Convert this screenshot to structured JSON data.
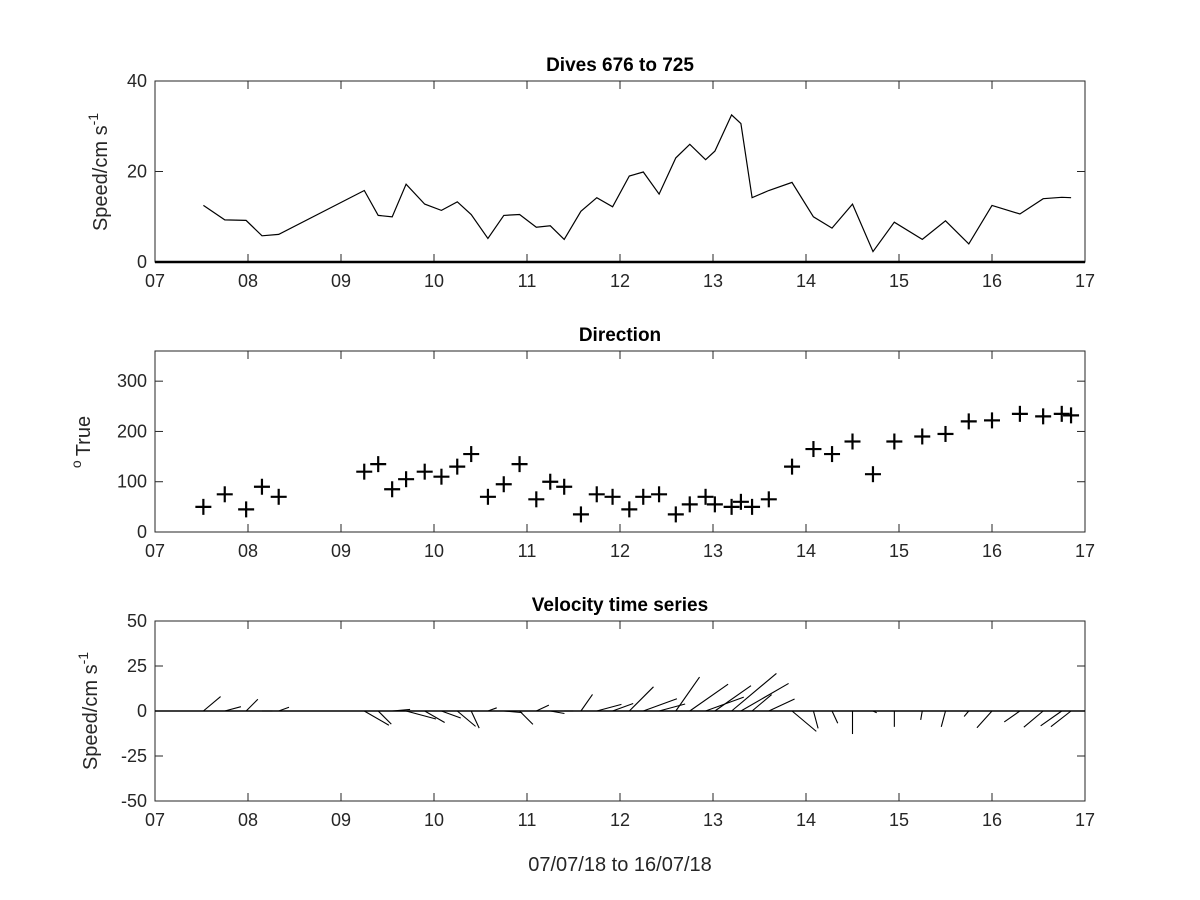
{
  "chart_data": [
    {
      "type": "line",
      "title": "Dives 676 to 725",
      "ylabel": "Speed/cm s",
      "ylabel_sup": "-1",
      "xlabel": "",
      "xlim": [
        7,
        17
      ],
      "ylim": [
        0,
        40
      ],
      "xticks": [
        7,
        8,
        9,
        10,
        11,
        12,
        13,
        14,
        15,
        16,
        17
      ],
      "xticklabels": [
        "07",
        "08",
        "09",
        "10",
        "11",
        "12",
        "13",
        "14",
        "15",
        "16",
        "17"
      ],
      "yticks": [
        0,
        20,
        40
      ],
      "yticklabels": [
        "0",
        "20",
        "40"
      ],
      "grid": false,
      "series": [
        {
          "x": [
            7.52,
            7.75,
            7.98,
            8.15,
            8.33,
            9.25,
            9.4,
            9.55,
            9.7,
            9.9,
            10.08,
            10.25,
            10.4,
            10.58,
            10.75,
            10.92,
            11.1,
            11.25,
            11.4,
            11.58,
            11.75,
            11.92,
            12.1,
            12.25,
            12.42,
            12.6,
            12.75,
            12.92,
            13.02,
            13.2,
            13.3,
            13.42,
            13.6,
            13.85,
            14.08,
            14.28,
            14.5,
            14.72,
            14.95,
            15.25,
            15.5,
            15.75,
            16.0,
            16.3,
            16.55,
            16.75,
            16.85
          ],
          "values": [
            12.5,
            9.3,
            9.2,
            5.8,
            6.1,
            15.8,
            10.3,
            10.0,
            17.2,
            12.8,
            11.4,
            13.3,
            10.5,
            5.2,
            10.3,
            10.5,
            7.7,
            8.0,
            5.0,
            11.2,
            14.2,
            12.2,
            19.0,
            19.9,
            15.0,
            23.0,
            26.0,
            22.6,
            24.5,
            32.5,
            30.6,
            14.2,
            15.8,
            17.6,
            10.0,
            7.5,
            12.8,
            2.3,
            8.8,
            5.0,
            9.1,
            4.0,
            12.5,
            10.6,
            14.0,
            14.3,
            14.2
          ]
        }
      ]
    },
    {
      "type": "scatter",
      "title": "Direction",
      "ylabel": "True",
      "ylabel_prefix": "o",
      "xlabel": "",
      "marker": "+",
      "xlim": [
        7,
        17
      ],
      "ylim": [
        0,
        360
      ],
      "xticks": [
        7,
        8,
        9,
        10,
        11,
        12,
        13,
        14,
        15,
        16,
        17
      ],
      "xticklabels": [
        "07",
        "08",
        "09",
        "10",
        "11",
        "12",
        "13",
        "14",
        "15",
        "16",
        "17"
      ],
      "yticks": [
        0,
        100,
        200,
        300
      ],
      "yticklabels": [
        "0",
        "100",
        "200",
        "300"
      ],
      "grid": false,
      "series": [
        {
          "x": [
            7.52,
            7.75,
            7.98,
            8.15,
            8.33,
            9.25,
            9.4,
            9.55,
            9.7,
            9.9,
            10.08,
            10.25,
            10.4,
            10.58,
            10.75,
            10.92,
            11.1,
            11.25,
            11.4,
            11.58,
            11.75,
            11.92,
            12.1,
            12.25,
            12.42,
            12.6,
            12.75,
            12.92,
            13.02,
            13.2,
            13.3,
            13.42,
            13.6,
            13.85,
            14.08,
            14.28,
            14.5,
            14.72,
            14.95,
            15.25,
            15.5,
            15.75,
            16.0,
            16.3,
            16.55,
            16.75,
            16.85
          ],
          "values": [
            50,
            75,
            45,
            90,
            70,
            120,
            135,
            85,
            105,
            120,
            110,
            130,
            155,
            70,
            95,
            135,
            65,
            100,
            90,
            35,
            75,
            70,
            45,
            70,
            75,
            35,
            55,
            70,
            55,
            50,
            60,
            50,
            65,
            130,
            165,
            155,
            180,
            115,
            180,
            190,
            195,
            220,
            222,
            235,
            230,
            235,
            232
          ]
        }
      ]
    },
    {
      "type": "line",
      "subtype": "velocity-stick-plot",
      "title": "Velocity time series",
      "ylabel": "Speed/cm s",
      "ylabel_sup": "-1",
      "xlabel": "07/07/18 to 16/07/18",
      "xlim": [
        7,
        17
      ],
      "ylim": [
        -50,
        50
      ],
      "xticks": [
        7,
        8,
        9,
        10,
        11,
        12,
        13,
        14,
        15,
        16,
        17
      ],
      "xticklabels": [
        "07",
        "08",
        "09",
        "10",
        "11",
        "12",
        "13",
        "14",
        "15",
        "16",
        "17"
      ],
      "yticks": [
        50,
        25,
        0,
        -25,
        -50
      ],
      "yticklabels": [
        "50",
        "25",
        "0",
        "-25",
        "-50"
      ],
      "grid": false,
      "note": "sticks drawn from (x,0) with components derived from speed and direction series"
    }
  ]
}
